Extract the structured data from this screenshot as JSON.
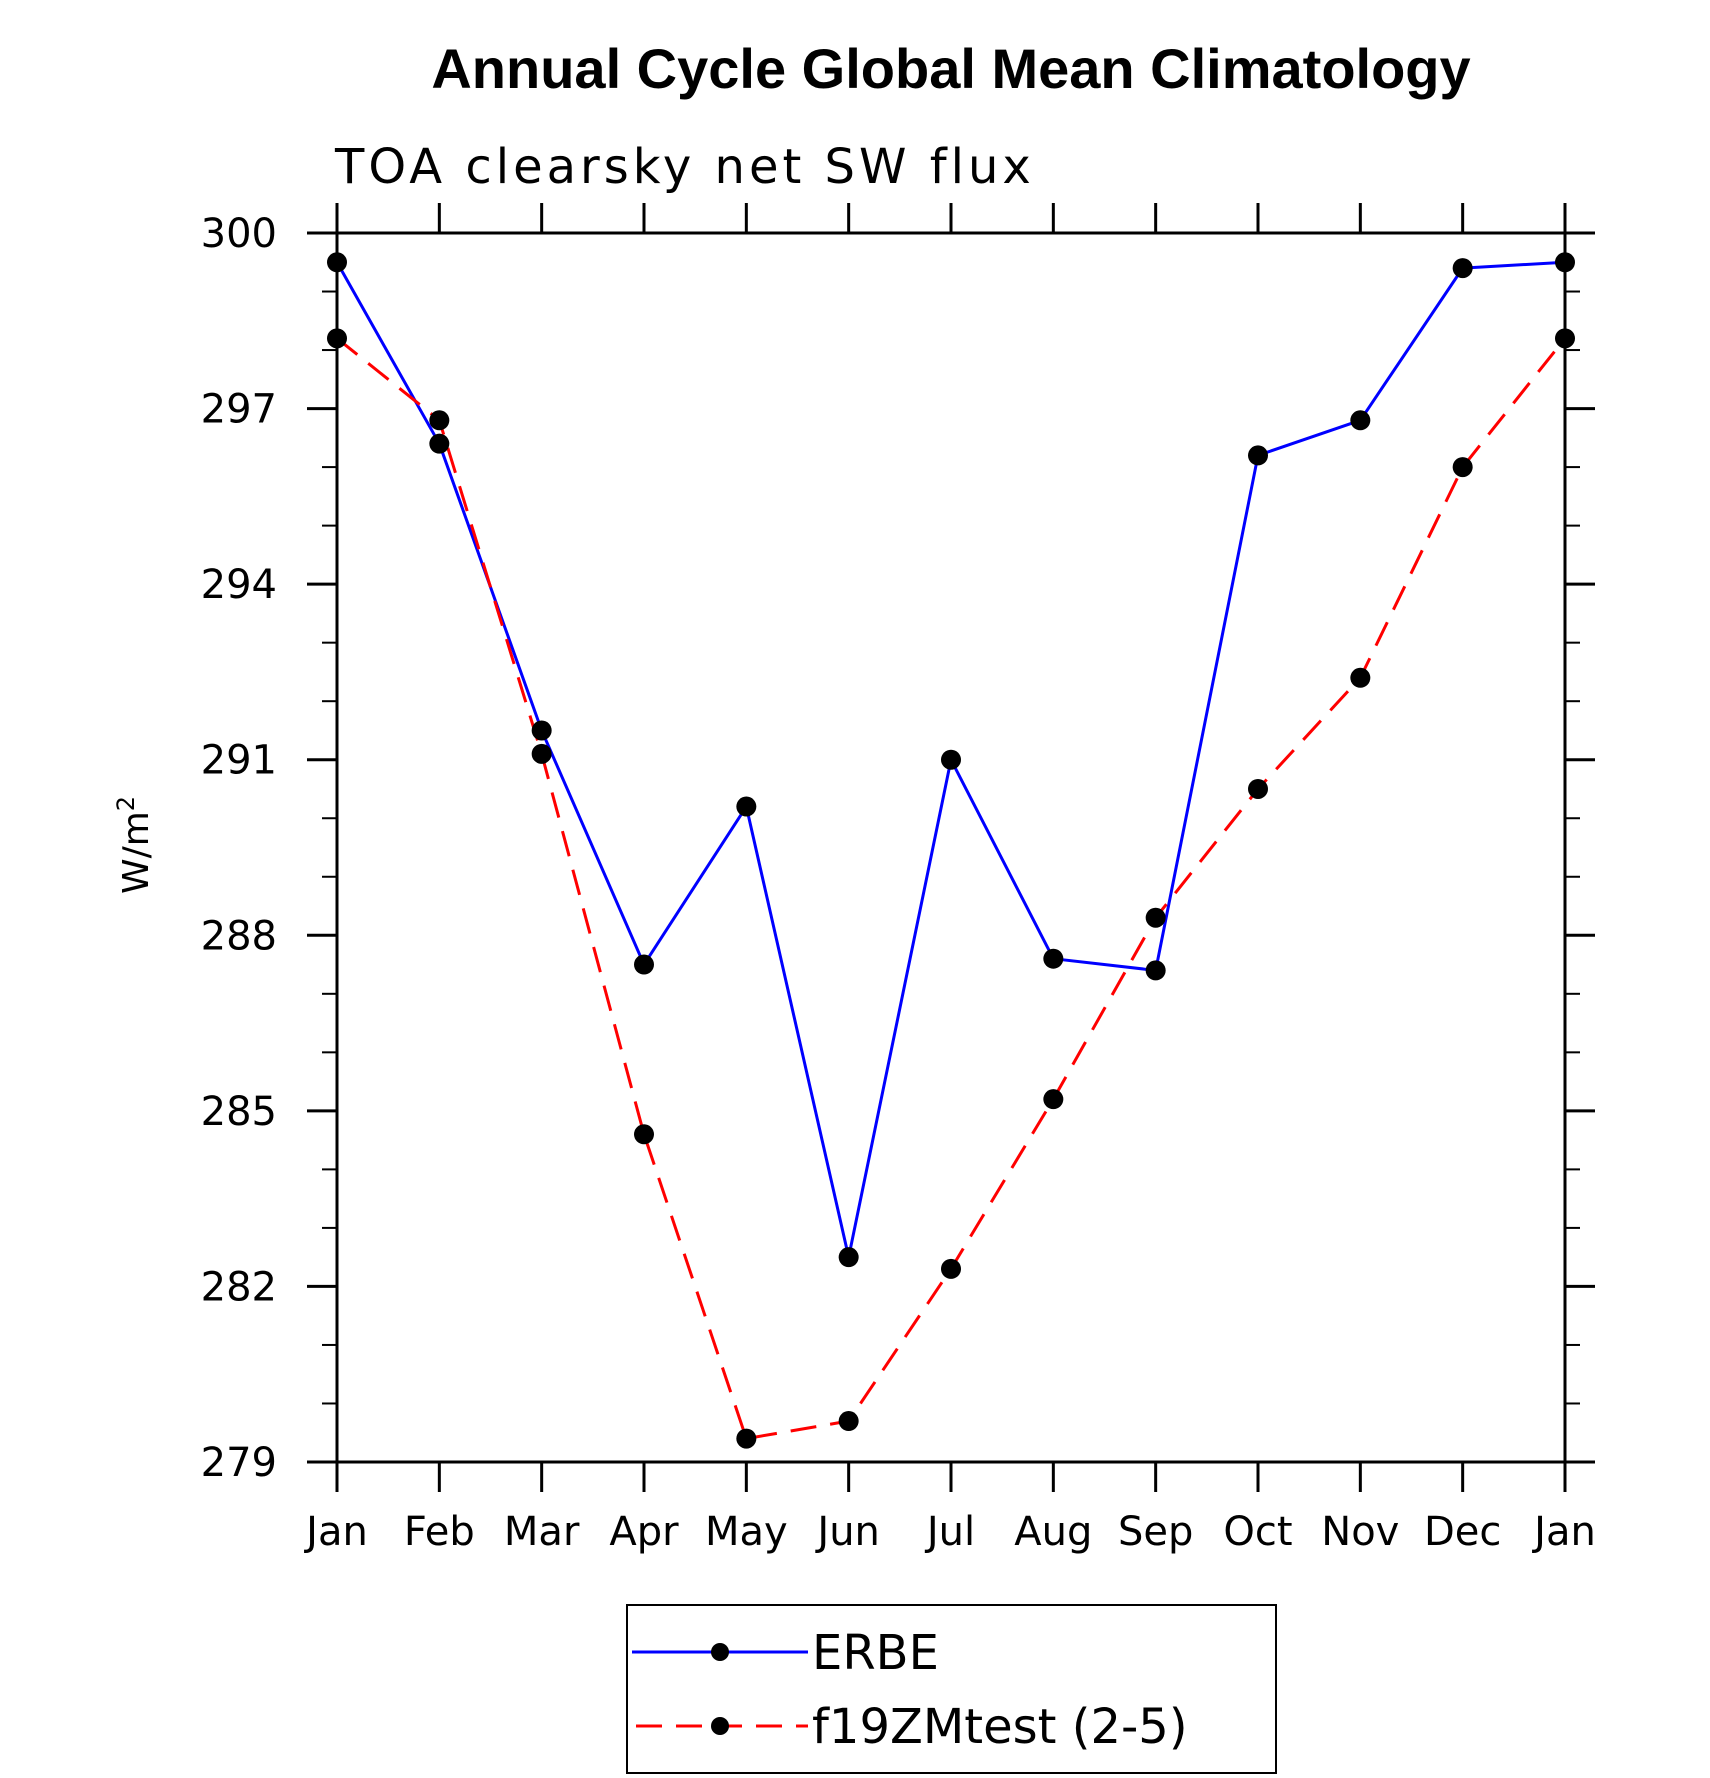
{
  "chart_data": {
    "type": "line",
    "title": "Annual Cycle Global Mean Climatology",
    "subtitle": "TOA clearsky net SW flux",
    "ylabel": "W/m",
    "ylabel_sup": "2",
    "xlabel": "",
    "categories": [
      "Jan",
      "Feb",
      "Mar",
      "Apr",
      "May",
      "Jun",
      "Jul",
      "Aug",
      "Sep",
      "Oct",
      "Nov",
      "Dec",
      "Jan"
    ],
    "ylim": [
      279,
      300
    ],
    "yticks": [
      279,
      282,
      285,
      288,
      291,
      294,
      297,
      300
    ],
    "grid": false,
    "legend_position": "bottom",
    "series": [
      {
        "name": "ERBE",
        "color": "#0000ff",
        "dash": "solid",
        "values": [
          299.5,
          296.4,
          291.5,
          287.5,
          290.2,
          282.5,
          291.0,
          287.6,
          287.4,
          296.2,
          296.8,
          299.4,
          299.5
        ]
      },
      {
        "name": "f19ZMtest (2-5)",
        "color": "#ff0000",
        "dash": "dashed",
        "values": [
          298.2,
          296.8,
          291.1,
          284.6,
          279.4,
          279.7,
          282.3,
          285.2,
          288.3,
          290.5,
          292.4,
          296.0,
          298.2
        ]
      }
    ]
  }
}
